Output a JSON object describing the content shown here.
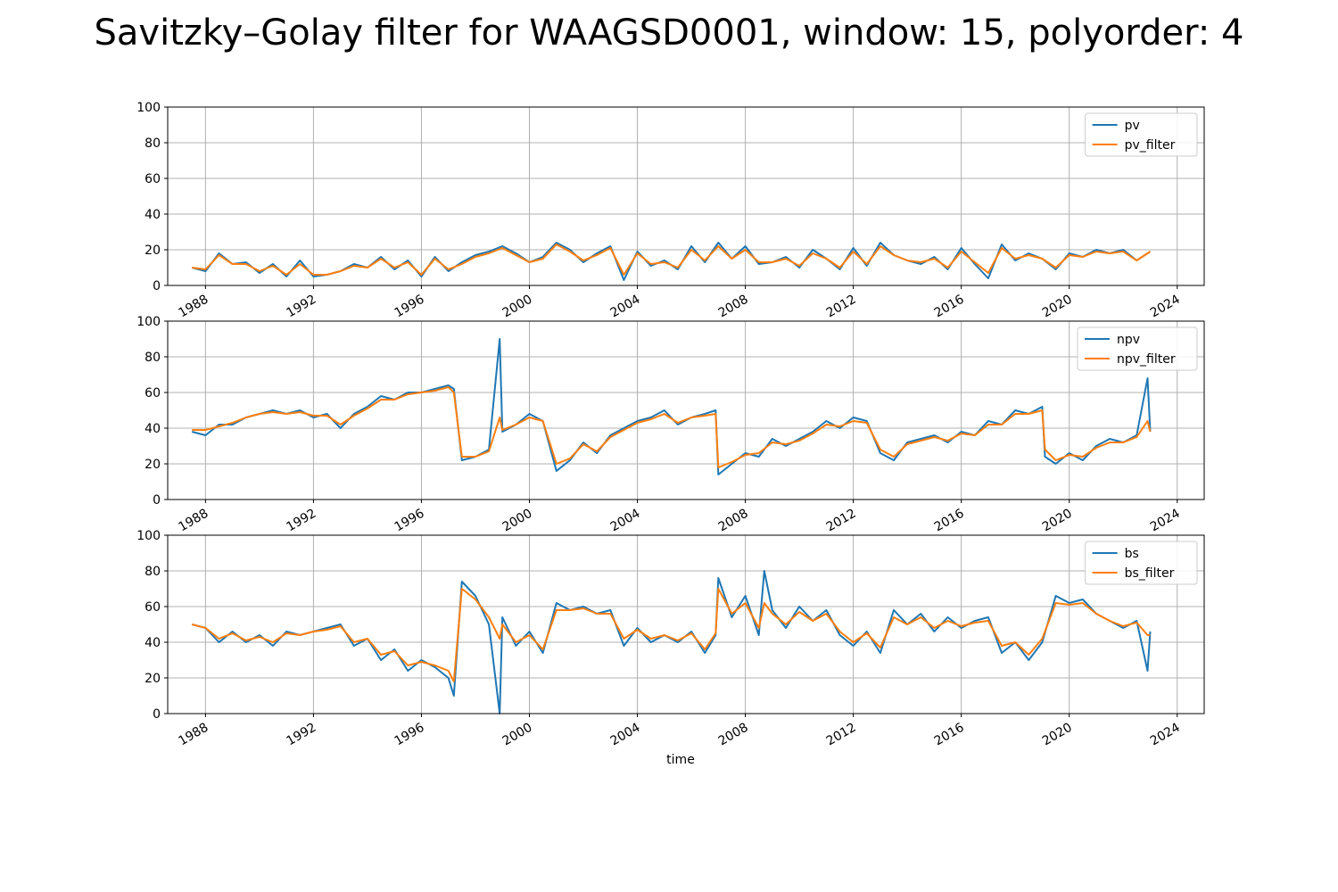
{
  "title": "Savitzky–Golay filter for WAAGSD0001, window: 15, polyorder: 4",
  "colors": {
    "raw": "#1f77b4",
    "filter": "#ff7f0e",
    "grid": "#b0b0b0",
    "axis": "#000000"
  },
  "chart_data": [
    {
      "type": "line",
      "xlabel": "",
      "ylim": [
        0,
        100
      ],
      "yticks": [
        0,
        20,
        40,
        60,
        80,
        100
      ],
      "xlim": [
        1986.6,
        2025.0
      ],
      "xticks": [
        "1988",
        "1992",
        "1996",
        "2000",
        "2004",
        "2008",
        "2012",
        "2016",
        "2020",
        "2024"
      ],
      "grid": true,
      "legend_position": "top-right",
      "series": [
        {
          "name": "pv",
          "role": "raw",
          "x": [
            1987.5,
            1988.0,
            1988.5,
            1989.0,
            1989.5,
            1990.0,
            1990.5,
            1991.0,
            1991.5,
            1992.0,
            1992.5,
            1993.0,
            1993.5,
            1994.0,
            1994.5,
            1995.0,
            1995.5,
            1996.0,
            1996.5,
            1997.0,
            1997.5,
            1998.0,
            1998.5,
            1999.0,
            1999.5,
            2000.0,
            2000.5,
            2001.0,
            2001.5,
            2002.0,
            2002.5,
            2003.0,
            2003.5,
            2004.0,
            2004.5,
            2005.0,
            2005.5,
            2006.0,
            2006.5,
            2007.0,
            2007.5,
            2008.0,
            2008.5,
            2009.0,
            2009.5,
            2010.0,
            2010.5,
            2011.0,
            2011.5,
            2012.0,
            2012.5,
            2013.0,
            2013.5,
            2014.0,
            2014.5,
            2015.0,
            2015.5,
            2016.0,
            2016.5,
            2017.0,
            2017.5,
            2018.0,
            2018.5,
            2019.0,
            2019.5,
            2020.0,
            2020.5,
            2021.0,
            2021.5,
            2022.0,
            2022.5,
            2023.0
          ],
          "y": [
            10,
            8,
            18,
            12,
            13,
            7,
            12,
            5,
            14,
            5,
            6,
            8,
            12,
            10,
            16,
            9,
            14,
            5,
            16,
            8,
            13,
            17,
            19,
            22,
            18,
            13,
            16,
            24,
            20,
            13,
            18,
            22,
            3,
            19,
            11,
            14,
            9,
            22,
            13,
            24,
            15,
            22,
            12,
            13,
            16,
            10,
            20,
            15,
            9,
            21,
            11,
            24,
            17,
            14,
            12,
            16,
            9,
            21,
            12,
            4,
            23,
            14,
            18,
            15,
            9,
            18,
            16,
            20,
            18,
            20,
            14,
            19
          ]
        },
        {
          "name": "pv_filter",
          "role": "filter",
          "x": [
            1987.5,
            1988.0,
            1988.5,
            1989.0,
            1989.5,
            1990.0,
            1990.5,
            1991.0,
            1991.5,
            1992.0,
            1992.5,
            1993.0,
            1993.5,
            1994.0,
            1994.5,
            1995.0,
            1995.5,
            1996.0,
            1996.5,
            1997.0,
            1997.5,
            1998.0,
            1998.5,
            1999.0,
            1999.5,
            2000.0,
            2000.5,
            2001.0,
            2001.5,
            2002.0,
            2002.5,
            2003.0,
            2003.5,
            2004.0,
            2004.5,
            2005.0,
            2005.5,
            2006.0,
            2006.5,
            2007.0,
            2007.5,
            2008.0,
            2008.5,
            2009.0,
            2009.5,
            2010.0,
            2010.5,
            2011.0,
            2011.5,
            2012.0,
            2012.5,
            2013.0,
            2013.5,
            2014.0,
            2014.5,
            2015.0,
            2015.5,
            2016.0,
            2016.5,
            2017.0,
            2017.5,
            2018.0,
            2018.5,
            2019.0,
            2019.5,
            2020.0,
            2020.5,
            2021.0,
            2021.5,
            2022.0,
            2022.5,
            2023.0
          ],
          "y": [
            10,
            9,
            17,
            12,
            12,
            8,
            11,
            6,
            12,
            6,
            6,
            8,
            11,
            10,
            15,
            10,
            13,
            6,
            15,
            9,
            12,
            16,
            18,
            21,
            17,
            13,
            15,
            23,
            19,
            14,
            17,
            21,
            6,
            18,
            12,
            13,
            10,
            20,
            14,
            22,
            15,
            20,
            13,
            13,
            15,
            11,
            18,
            15,
            10,
            19,
            12,
            22,
            17,
            14,
            13,
            15,
            10,
            19,
            13,
            7,
            21,
            15,
            17,
            15,
            10,
            17,
            16,
            19,
            18,
            19,
            14,
            19
          ]
        }
      ]
    },
    {
      "type": "line",
      "xlabel": "",
      "ylim": [
        0,
        100
      ],
      "yticks": [
        0,
        20,
        40,
        60,
        80,
        100
      ],
      "xlim": [
        1986.6,
        2025.0
      ],
      "xticks": [
        "1988",
        "1992",
        "1996",
        "2000",
        "2004",
        "2008",
        "2012",
        "2016",
        "2020",
        "2024"
      ],
      "grid": true,
      "legend_position": "top-right",
      "series": [
        {
          "name": "npv",
          "role": "raw",
          "x": [
            1987.5,
            1988.0,
            1988.5,
            1989.0,
            1989.5,
            1990.0,
            1990.5,
            1991.0,
            1991.5,
            1992.0,
            1992.5,
            1993.0,
            1993.5,
            1994.0,
            1994.5,
            1995.0,
            1995.5,
            1996.0,
            1996.5,
            1997.0,
            1997.2,
            1997.5,
            1998.0,
            1998.5,
            1998.9,
            1999.0,
            1999.5,
            2000.0,
            2000.5,
            2001.0,
            2001.5,
            2002.0,
            2002.5,
            2003.0,
            2003.5,
            2004.0,
            2004.5,
            2005.0,
            2005.5,
            2006.0,
            2006.5,
            2006.9,
            2007.0,
            2007.5,
            2008.0,
            2008.5,
            2009.0,
            2009.5,
            2010.0,
            2010.5,
            2011.0,
            2011.5,
            2012.0,
            2012.5,
            2013.0,
            2013.5,
            2014.0,
            2014.5,
            2015.0,
            2015.5,
            2016.0,
            2016.5,
            2017.0,
            2017.5,
            2018.0,
            2018.5,
            2019.0,
            2019.1,
            2019.5,
            2020.0,
            2020.5,
            2021.0,
            2021.5,
            2022.0,
            2022.5,
            2022.9,
            2023.0
          ],
          "y": [
            38,
            36,
            42,
            42,
            46,
            48,
            50,
            48,
            50,
            46,
            48,
            40,
            48,
            52,
            58,
            56,
            60,
            60,
            62,
            64,
            62,
            22,
            24,
            28,
            90,
            38,
            42,
            48,
            44,
            16,
            22,
            32,
            26,
            36,
            40,
            44,
            46,
            50,
            42,
            46,
            48,
            50,
            14,
            20,
            26,
            24,
            34,
            30,
            34,
            38,
            44,
            40,
            46,
            44,
            26,
            22,
            32,
            34,
            36,
            32,
            38,
            36,
            44,
            42,
            50,
            48,
            52,
            24,
            20,
            26,
            22,
            30,
            34,
            32,
            36,
            68,
            38
          ]
        },
        {
          "name": "npv_filter",
          "role": "filter",
          "x": [
            1987.5,
            1988.0,
            1988.5,
            1989.0,
            1989.5,
            1990.0,
            1990.5,
            1991.0,
            1991.5,
            1992.0,
            1992.5,
            1993.0,
            1993.5,
            1994.0,
            1994.5,
            1995.0,
            1995.5,
            1996.0,
            1996.5,
            1997.0,
            1997.2,
            1997.5,
            1998.0,
            1998.5,
            1998.9,
            1999.0,
            1999.5,
            2000.0,
            2000.5,
            2001.0,
            2001.5,
            2002.0,
            2002.5,
            2003.0,
            2003.5,
            2004.0,
            2004.5,
            2005.0,
            2005.5,
            2006.0,
            2006.5,
            2006.9,
            2007.0,
            2007.5,
            2008.0,
            2008.5,
            2009.0,
            2009.5,
            2010.0,
            2010.5,
            2011.0,
            2011.5,
            2012.0,
            2012.5,
            2013.0,
            2013.5,
            2014.0,
            2014.5,
            2015.0,
            2015.5,
            2016.0,
            2016.5,
            2017.0,
            2017.5,
            2018.0,
            2018.5,
            2019.0,
            2019.1,
            2019.5,
            2020.0,
            2020.5,
            2021.0,
            2021.5,
            2022.0,
            2022.5,
            2022.9,
            2023.0
          ],
          "y": [
            39,
            39,
            41,
            43,
            46,
            48,
            49,
            48,
            49,
            47,
            47,
            42,
            47,
            51,
            56,
            56,
            59,
            60,
            61,
            63,
            60,
            24,
            24,
            27,
            46,
            39,
            42,
            46,
            44,
            20,
            23,
            31,
            27,
            35,
            39,
            43,
            45,
            48,
            43,
            46,
            47,
            48,
            18,
            21,
            25,
            26,
            32,
            31,
            33,
            37,
            42,
            41,
            44,
            43,
            28,
            24,
            31,
            33,
            35,
            33,
            37,
            36,
            42,
            42,
            48,
            48,
            50,
            28,
            22,
            25,
            24,
            29,
            32,
            32,
            35,
            44,
            38
          ]
        }
      ]
    },
    {
      "type": "line",
      "xlabel": "time",
      "ylim": [
        0,
        100
      ],
      "yticks": [
        0,
        20,
        40,
        60,
        80,
        100
      ],
      "xlim": [
        1986.6,
        2025.0
      ],
      "xticks": [
        "1988",
        "1992",
        "1996",
        "2000",
        "2004",
        "2008",
        "2012",
        "2016",
        "2020",
        "2024"
      ],
      "grid": true,
      "legend_position": "top-right",
      "series": [
        {
          "name": "bs",
          "role": "raw",
          "x": [
            1987.5,
            1988.0,
            1988.5,
            1989.0,
            1989.5,
            1990.0,
            1990.5,
            1991.0,
            1991.5,
            1992.0,
            1992.5,
            1993.0,
            1993.5,
            1994.0,
            1994.5,
            1995.0,
            1995.5,
            1996.0,
            1996.5,
            1997.0,
            1997.2,
            1997.5,
            1998.0,
            1998.5,
            1998.9,
            1999.0,
            1999.5,
            2000.0,
            2000.5,
            2001.0,
            2001.5,
            2002.0,
            2002.5,
            2003.0,
            2003.5,
            2004.0,
            2004.5,
            2005.0,
            2005.5,
            2006.0,
            2006.5,
            2006.9,
            2007.0,
            2007.5,
            2008.0,
            2008.5,
            2008.7,
            2009.0,
            2009.5,
            2010.0,
            2010.5,
            2011.0,
            2011.5,
            2012.0,
            2012.5,
            2013.0,
            2013.5,
            2014.0,
            2014.5,
            2015.0,
            2015.5,
            2016.0,
            2016.5,
            2017.0,
            2017.5,
            2018.0,
            2018.5,
            2019.0,
            2019.5,
            2020.0,
            2020.5,
            2021.0,
            2021.5,
            2022.0,
            2022.5,
            2022.9,
            2023.0
          ],
          "y": [
            50,
            48,
            40,
            46,
            40,
            44,
            38,
            46,
            44,
            46,
            48,
            50,
            38,
            42,
            30,
            36,
            24,
            30,
            26,
            20,
            10,
            74,
            66,
            50,
            0,
            54,
            38,
            46,
            34,
            62,
            58,
            60,
            56,
            58,
            38,
            48,
            40,
            44,
            40,
            46,
            34,
            44,
            76,
            54,
            66,
            44,
            80,
            58,
            48,
            60,
            52,
            58,
            44,
            38,
            46,
            34,
            58,
            50,
            56,
            46,
            54,
            48,
            52,
            54,
            34,
            40,
            30,
            40,
            66,
            62,
            64,
            56,
            52,
            48,
            52,
            24,
            46
          ]
        },
        {
          "name": "bs_filter",
          "role": "filter",
          "x": [
            1987.5,
            1988.0,
            1988.5,
            1989.0,
            1989.5,
            1990.0,
            1990.5,
            1991.0,
            1991.5,
            1992.0,
            1992.5,
            1993.0,
            1993.5,
            1994.0,
            1994.5,
            1995.0,
            1995.5,
            1996.0,
            1996.5,
            1997.0,
            1997.2,
            1997.5,
            1998.0,
            1998.5,
            1998.9,
            1999.0,
            1999.5,
            2000.0,
            2000.5,
            2001.0,
            2001.5,
            2002.0,
            2002.5,
            2003.0,
            2003.5,
            2004.0,
            2004.5,
            2005.0,
            2005.5,
            2006.0,
            2006.5,
            2006.9,
            2007.0,
            2007.5,
            2008.0,
            2008.5,
            2008.7,
            2009.0,
            2009.5,
            2010.0,
            2010.5,
            2011.0,
            2011.5,
            2012.0,
            2012.5,
            2013.0,
            2013.5,
            2014.0,
            2014.5,
            2015.0,
            2015.5,
            2016.0,
            2016.5,
            2017.0,
            2017.5,
            2018.0,
            2018.5,
            2019.0,
            2019.5,
            2020.0,
            2020.5,
            2021.0,
            2021.5,
            2022.0,
            2022.5,
            2022.9,
            2023.0
          ],
          "y": [
            50,
            48,
            42,
            45,
            41,
            43,
            40,
            45,
            44,
            46,
            47,
            49,
            40,
            42,
            33,
            35,
            27,
            29,
            27,
            24,
            18,
            70,
            64,
            54,
            42,
            50,
            40,
            44,
            36,
            58,
            58,
            59,
            56,
            56,
            42,
            47,
            42,
            44,
            41,
            45,
            36,
            45,
            70,
            56,
            62,
            48,
            62,
            56,
            50,
            57,
            52,
            56,
            46,
            40,
            45,
            37,
            54,
            50,
            54,
            48,
            52,
            49,
            51,
            52,
            38,
            40,
            33,
            42,
            62,
            61,
            62,
            56,
            52,
            49,
            51,
            44,
            44
          ]
        }
      ]
    }
  ]
}
